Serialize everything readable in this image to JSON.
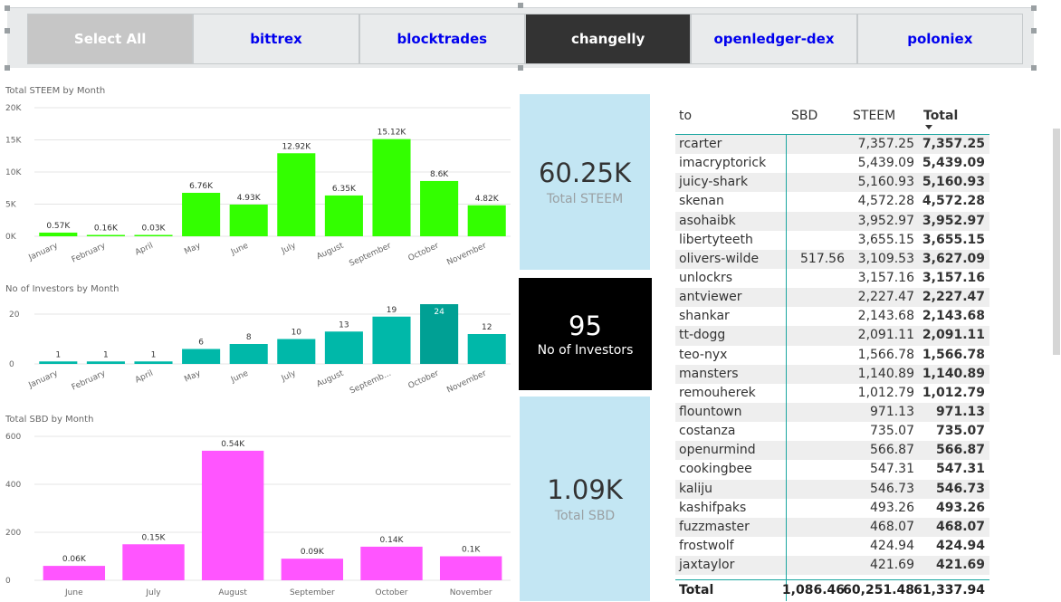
{
  "slicer": {
    "buttons": [
      {
        "label": "Select All",
        "state": "all"
      },
      {
        "label": "bittrex",
        "state": "normal"
      },
      {
        "label": "blocktrades",
        "state": "normal"
      },
      {
        "label": "changelly",
        "state": "selected"
      },
      {
        "label": "openledger-dex",
        "state": "normal"
      },
      {
        "label": "poloniex",
        "state": "normal"
      }
    ]
  },
  "cards": {
    "steem": {
      "value": "60.25K",
      "label": "Total STEEM"
    },
    "investors": {
      "value": "95",
      "label": "No of Investors"
    },
    "sbd": {
      "value": "1.09K",
      "label": "Total SBD"
    }
  },
  "chart_data": [
    {
      "type": "bar",
      "title": "Total STEEM by Month",
      "categories": [
        "January",
        "February",
        "April",
        "May",
        "June",
        "July",
        "August",
        "September",
        "October",
        "November"
      ],
      "values": [
        570,
        160,
        30,
        6760,
        4930,
        12920,
        6350,
        15120,
        8600,
        4820
      ],
      "data_labels": [
        "0.57K",
        "0.16K",
        "0.03K",
        "6.76K",
        "4.93K",
        "12.92K",
        "6.35K",
        "15.12K",
        "8.6K",
        "4.82K"
      ],
      "yticks": [
        "0K",
        "5K",
        "10K",
        "15K",
        "20K"
      ],
      "ylim": [
        0,
        20000
      ],
      "color": "#33ff00",
      "grid": true
    },
    {
      "type": "bar",
      "title": "No of Investors by Month",
      "categories": [
        "January",
        "February",
        "April",
        "May",
        "June",
        "July",
        "August",
        "September",
        "October",
        "November"
      ],
      "tick_labels": [
        "January",
        "February",
        "April",
        "May",
        "June",
        "July",
        "August",
        "Septemb...",
        "October",
        "November"
      ],
      "values": [
        1,
        1,
        1,
        6,
        8,
        10,
        13,
        19,
        24,
        12
      ],
      "data_labels": [
        "1",
        "1",
        "1",
        "6",
        "8",
        "10",
        "13",
        "19",
        "24",
        "12"
      ],
      "yticks": [
        "0",
        "20"
      ],
      "ylim": [
        0,
        24
      ],
      "color": "#00b8a9",
      "highlight_color": "#00a094",
      "highlight_index": 8,
      "grid": true
    },
    {
      "type": "bar",
      "title": "Total SBD by Month",
      "categories": [
        "June",
        "July",
        "August",
        "September",
        "October",
        "November"
      ],
      "values": [
        60,
        150,
        540,
        90,
        140,
        100
      ],
      "data_labels": [
        "0.06K",
        "0.15K",
        "0.54K",
        "0.09K",
        "0.14K",
        "0.1K"
      ],
      "yticks": [
        "0",
        "200",
        "400",
        "600"
      ],
      "ylim": [
        0,
        600
      ],
      "color": "#ff55ff",
      "grid": true
    }
  ],
  "table": {
    "headers": {
      "to": "to",
      "sbd": "SBD",
      "steem": "STEEM",
      "total": "Total"
    },
    "sort": {
      "column": "Total",
      "direction": "descending"
    },
    "rows": [
      {
        "to": "rcarter",
        "sbd": "",
        "steem": "7,357.25",
        "total": "7,357.25"
      },
      {
        "to": "imacryptorick",
        "sbd": "",
        "steem": "5,439.09",
        "total": "5,439.09"
      },
      {
        "to": "juicy-shark",
        "sbd": "",
        "steem": "5,160.93",
        "total": "5,160.93"
      },
      {
        "to": "skenan",
        "sbd": "",
        "steem": "4,572.28",
        "total": "4,572.28"
      },
      {
        "to": "asohaibk",
        "sbd": "",
        "steem": "3,952.97",
        "total": "3,952.97"
      },
      {
        "to": "libertyteeth",
        "sbd": "",
        "steem": "3,655.15",
        "total": "3,655.15"
      },
      {
        "to": "olivers-wilde",
        "sbd": "517.56",
        "steem": "3,109.53",
        "total": "3,627.09"
      },
      {
        "to": "unlockrs",
        "sbd": "",
        "steem": "3,157.16",
        "total": "3,157.16"
      },
      {
        "to": "antviewer",
        "sbd": "",
        "steem": "2,227.47",
        "total": "2,227.47"
      },
      {
        "to": "shankar",
        "sbd": "",
        "steem": "2,143.68",
        "total": "2,143.68"
      },
      {
        "to": "tt-dogg",
        "sbd": "",
        "steem": "2,091.11",
        "total": "2,091.11"
      },
      {
        "to": "teo-nyx",
        "sbd": "",
        "steem": "1,566.78",
        "total": "1,566.78"
      },
      {
        "to": "mansters",
        "sbd": "",
        "steem": "1,140.89",
        "total": "1,140.89"
      },
      {
        "to": "remouherek",
        "sbd": "",
        "steem": "1,012.79",
        "total": "1,012.79"
      },
      {
        "to": "flountown",
        "sbd": "",
        "steem": "971.13",
        "total": "971.13"
      },
      {
        "to": "costanza",
        "sbd": "",
        "steem": "735.07",
        "total": "735.07"
      },
      {
        "to": "openurmind",
        "sbd": "",
        "steem": "566.87",
        "total": "566.87"
      },
      {
        "to": "cookingbee",
        "sbd": "",
        "steem": "547.31",
        "total": "547.31"
      },
      {
        "to": "kaliju",
        "sbd": "",
        "steem": "546.73",
        "total": "546.73"
      },
      {
        "to": "kashifpaks",
        "sbd": "",
        "steem": "493.26",
        "total": "493.26"
      },
      {
        "to": "fuzzmaster",
        "sbd": "",
        "steem": "468.07",
        "total": "468.07"
      },
      {
        "to": "frostwolf",
        "sbd": "",
        "steem": "424.94",
        "total": "424.94"
      },
      {
        "to": "jaxtaylor",
        "sbd": "",
        "steem": "421.69",
        "total": "421.69"
      }
    ],
    "footer": {
      "label": "Total",
      "sbd": "1,086.46",
      "steem": "60,251.48",
      "total": "61,337.94"
    }
  }
}
